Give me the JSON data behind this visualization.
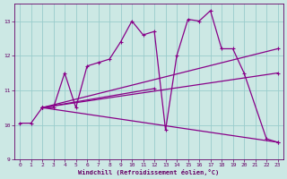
{
  "xlabel": "Windchill (Refroidissement éolien,°C)",
  "bg_color": "#cce8e4",
  "line_color": "#880088",
  "grid_color": "#99cccc",
  "xlim": [
    -0.5,
    23.5
  ],
  "ylim": [
    9.0,
    13.5
  ],
  "yticks": [
    9,
    10,
    11,
    12,
    13
  ],
  "xticks": [
    0,
    1,
    2,
    3,
    4,
    5,
    6,
    7,
    8,
    9,
    10,
    11,
    12,
    13,
    14,
    15,
    16,
    17,
    18,
    19,
    20,
    21,
    22,
    23
  ],
  "main_line": {
    "x": [
      0,
      1,
      2,
      3,
      4,
      5,
      6,
      7,
      8,
      9,
      10,
      11,
      12,
      13,
      14,
      15,
      16,
      17,
      18,
      19,
      20,
      22,
      23
    ],
    "y": [
      10.05,
      10.05,
      10.5,
      10.5,
      11.5,
      10.5,
      11.7,
      11.8,
      11.9,
      12.4,
      13.0,
      12.6,
      12.7,
      9.85,
      12.0,
      13.05,
      13.0,
      13.3,
      12.2,
      12.2,
      11.5,
      9.6,
      9.5
    ]
  },
  "fan_lines": [
    {
      "x": [
        2,
        23
      ],
      "y": [
        10.5,
        12.2
      ]
    },
    {
      "x": [
        2,
        23
      ],
      "y": [
        10.5,
        11.5
      ]
    },
    {
      "x": [
        2,
        12
      ],
      "y": [
        10.5,
        11.05
      ]
    },
    {
      "x": [
        2,
        23
      ],
      "y": [
        10.5,
        9.5
      ]
    }
  ]
}
